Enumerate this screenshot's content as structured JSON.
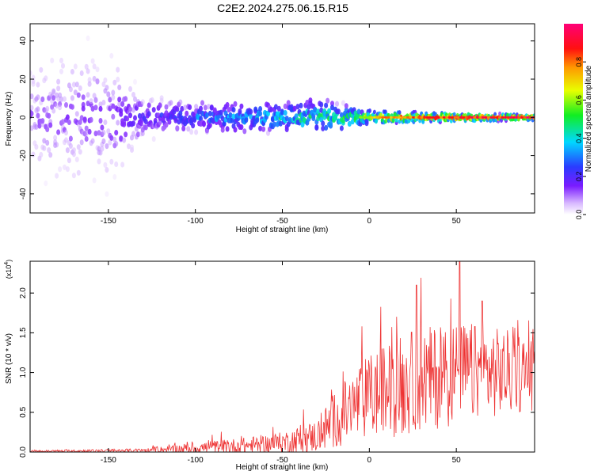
{
  "title": "C2E2.2024.275.06.15.R15",
  "chart_data": [
    {
      "type": "heatmap",
      "panel": "top",
      "xlabel": "Height of straight line (km)",
      "ylabel": "Frequency (Hz)",
      "xlim": [
        -195,
        95
      ],
      "ylim": [
        -50,
        49
      ],
      "xticks": [
        -150,
        -100,
        -50,
        0,
        50
      ],
      "yticks": [
        -40,
        -20,
        0,
        20,
        40
      ],
      "colorbar": {
        "label": "Normalized spectral amplitude",
        "range": [
          0.0,
          1.0
        ],
        "ticks": [
          "0.0",
          "0.2",
          "0.4",
          "0.6",
          "0.8"
        ],
        "colormap": "rainbow (white-violet-blue-cyan-green-yellow-red-magenta)"
      },
      "description_of_signal": {
        "band_center_hz": 0,
        "band_halfwidth_hz_by_height": [
          {
            "x": -190,
            "w": 45
          },
          {
            "x": -150,
            "w": 45
          },
          {
            "x": -130,
            "w": 14
          },
          {
            "x": -100,
            "w": 11
          },
          {
            "x": -50,
            "w": 10
          },
          {
            "x": -30,
            "w": 13
          },
          {
            "x": 0,
            "w": 5
          },
          {
            "x": 50,
            "w": 3
          },
          {
            "x": 90,
            "w": 2
          }
        ],
        "peak_amplitude_by_height": [
          {
            "x": -190,
            "a": 0.12
          },
          {
            "x": -150,
            "a": 0.15
          },
          {
            "x": -100,
            "a": 0.3
          },
          {
            "x": -50,
            "a": 0.45
          },
          {
            "x": -10,
            "a": 0.55
          },
          {
            "x": 10,
            "a": 0.8
          },
          {
            "x": 50,
            "a": 0.9
          },
          {
            "x": 90,
            "a": 0.95
          }
        ]
      }
    },
    {
      "type": "line",
      "panel": "bottom",
      "xlabel": "Height of straight line (km)",
      "ylabel": "SNR (10 * v/v)",
      "yscale_label": "(x10",
      "yscale_exp": "4",
      "yscale_close": ")",
      "xlim": [
        -195,
        95
      ],
      "ylim": [
        0,
        2.4
      ],
      "xticks": [
        -150,
        -100,
        -50,
        0,
        50
      ],
      "yticks": [
        "0.0",
        "0.5",
        "1.0",
        "1.5",
        "2.0"
      ],
      "color": "#ee3333",
      "envelope": [
        {
          "x": -195,
          "base": 0.01,
          "spread": 0.02
        },
        {
          "x": -130,
          "base": 0.02,
          "spread": 0.04
        },
        {
          "x": -100,
          "base": 0.05,
          "spread": 0.12
        },
        {
          "x": -70,
          "base": 0.08,
          "spread": 0.18
        },
        {
          "x": -50,
          "base": 0.12,
          "spread": 0.22
        },
        {
          "x": -30,
          "base": 0.2,
          "spread": 0.35
        },
        {
          "x": -20,
          "base": 0.4,
          "spread": 0.6
        },
        {
          "x": 0,
          "base": 0.7,
          "spread": 0.9
        },
        {
          "x": 20,
          "base": 0.85,
          "spread": 1.1
        },
        {
          "x": 50,
          "base": 1.0,
          "spread": 1.1
        },
        {
          "x": 95,
          "base": 1.0,
          "spread": 0.8
        }
      ],
      "peaks": [
        {
          "x": 27,
          "y": 2.1
        },
        {
          "x": 52,
          "y": 2.4
        },
        {
          "x": 65,
          "y": 1.9
        }
      ]
    }
  ]
}
